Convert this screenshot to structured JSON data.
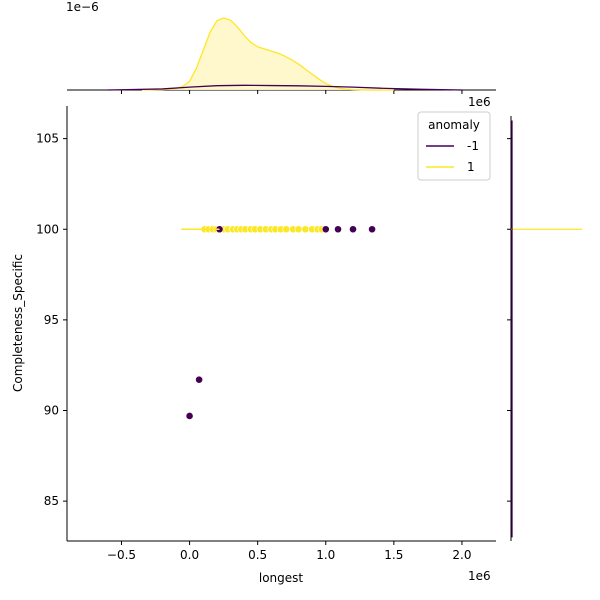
{
  "chart_data": {
    "type": "scatter",
    "xlabel": "longest",
    "ylabel": "Completeness_Specific",
    "x_offset_label": "1e6",
    "top_x_offset_label": "1e6",
    "top_y_offset_label": "1e−6",
    "xlim": [
      -0.9,
      2.25
    ],
    "ylim": [
      82.8,
      106.8
    ],
    "x_ticks": [
      {
        "value": -0.5,
        "label": "−0.5"
      },
      {
        "value": 0.0,
        "label": "0.0"
      },
      {
        "value": 0.5,
        "label": "0.5"
      },
      {
        "value": 1.0,
        "label": "1.0"
      },
      {
        "value": 1.5,
        "label": "1.5"
      },
      {
        "value": 2.0,
        "label": "2.0"
      }
    ],
    "y_ticks": [
      {
        "value": 85,
        "label": "85"
      },
      {
        "value": 90,
        "label": "90"
      },
      {
        "value": 95,
        "label": "95"
      },
      {
        "value": 100,
        "label": "100"
      },
      {
        "value": 105,
        "label": "105"
      }
    ],
    "legend": {
      "title": "anomaly",
      "placement": "top-right",
      "entries": [
        {
          "label": "-1",
          "color": "#440154"
        },
        {
          "label": "1",
          "color": "#fde725"
        }
      ]
    },
    "series": [
      {
        "name": "-1",
        "color": "#440154",
        "points": [
          {
            "x": 0.0,
            "y": 89.7
          },
          {
            "x": 0.07,
            "y": 91.7
          },
          {
            "x": 0.22,
            "y": 100
          },
          {
            "x": 1.0,
            "y": 100
          },
          {
            "x": 1.09,
            "y": 100
          },
          {
            "x": 1.2,
            "y": 100
          },
          {
            "x": 1.34,
            "y": 100
          }
        ]
      },
      {
        "name": "1",
        "color": "#fde725",
        "points": [
          {
            "x": 0.11,
            "y": 100
          },
          {
            "x": 0.14,
            "y": 100
          },
          {
            "x": 0.17,
            "y": 100
          },
          {
            "x": 0.2,
            "y": 100
          },
          {
            "x": 0.25,
            "y": 100
          },
          {
            "x": 0.28,
            "y": 100
          },
          {
            "x": 0.32,
            "y": 100
          },
          {
            "x": 0.35,
            "y": 100
          },
          {
            "x": 0.38,
            "y": 100
          },
          {
            "x": 0.41,
            "y": 100
          },
          {
            "x": 0.45,
            "y": 100
          },
          {
            "x": 0.48,
            "y": 100
          },
          {
            "x": 0.52,
            "y": 100
          },
          {
            "x": 0.56,
            "y": 100
          },
          {
            "x": 0.6,
            "y": 100
          },
          {
            "x": 0.63,
            "y": 100
          },
          {
            "x": 0.67,
            "y": 100
          },
          {
            "x": 0.71,
            "y": 100
          },
          {
            "x": 0.76,
            "y": 100
          },
          {
            "x": 0.8,
            "y": 100
          },
          {
            "x": 0.85,
            "y": 100
          },
          {
            "x": 0.9,
            "y": 100
          },
          {
            "x": 0.94,
            "y": 100
          },
          {
            "x": 0.97,
            "y": 100
          }
        ]
      }
    ],
    "marginal_x_density": {
      "series": [
        {
          "name": "1",
          "color": "#fde725",
          "fill_color": "#fff7c6",
          "x": [
            -0.35,
            -0.2,
            -0.1,
            -0.05,
            0.0,
            0.05,
            0.1,
            0.15,
            0.2,
            0.25,
            0.3,
            0.35,
            0.4,
            0.45,
            0.5,
            0.55,
            0.6,
            0.65,
            0.7,
            0.75,
            0.8,
            0.85,
            0.9,
            0.95,
            1.0,
            1.05,
            1.1,
            1.15,
            1.2,
            1.3,
            1.5
          ],
          "y": [
            0,
            0.005,
            0.02,
            0.05,
            0.12,
            0.3,
            0.55,
            0.8,
            0.96,
            1.0,
            0.97,
            0.88,
            0.76,
            0.66,
            0.6,
            0.57,
            0.54,
            0.51,
            0.47,
            0.42,
            0.36,
            0.29,
            0.22,
            0.15,
            0.09,
            0.05,
            0.025,
            0.012,
            0.005,
            0.001,
            0
          ]
        },
        {
          "name": "-1",
          "color": "#440154",
          "x": [
            -0.6,
            -0.2,
            0.0,
            0.2,
            0.4,
            0.6,
            0.8,
            1.0,
            1.2,
            1.4,
            1.7,
            2.0
          ],
          "y": [
            0.0,
            0.015,
            0.04,
            0.06,
            0.065,
            0.062,
            0.058,
            0.05,
            0.04,
            0.025,
            0.01,
            0.0
          ]
        }
      ]
    },
    "marginal_y_density": {
      "series": [
        {
          "name": "1",
          "color": "#fde725",
          "y": 100,
          "peak": 1.0
        },
        {
          "name": "-1",
          "color": "#440154",
          "y": [
            83.0,
            106.0
          ]
        }
      ]
    }
  }
}
